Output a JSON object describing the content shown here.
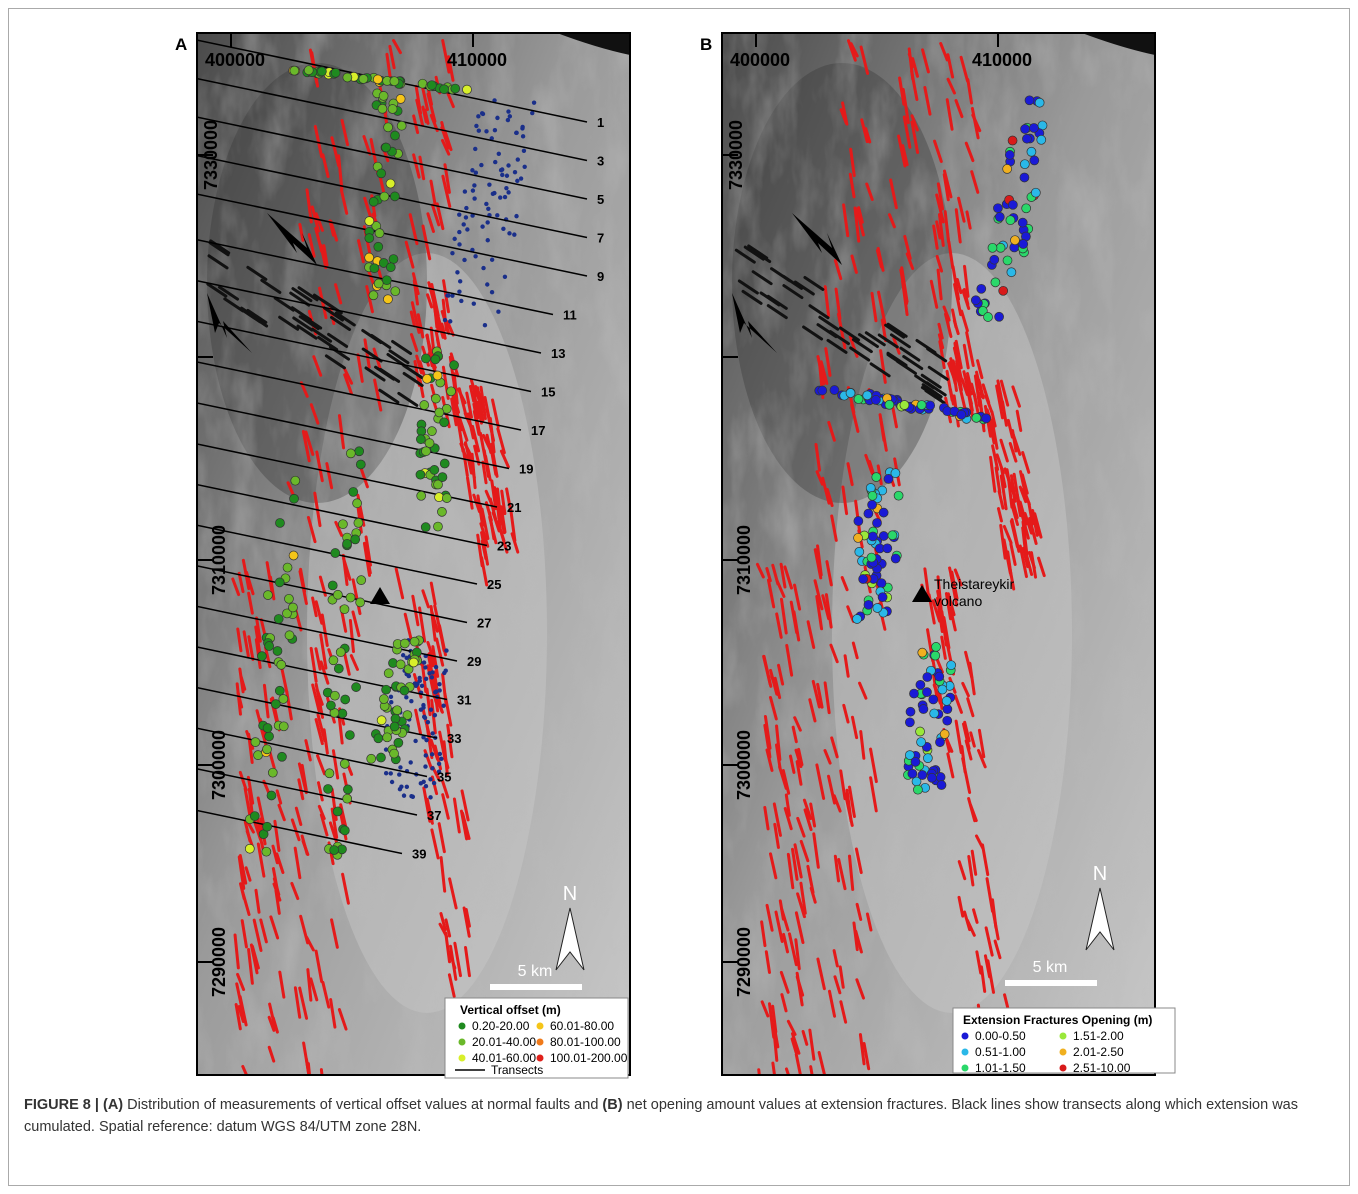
{
  "figure": {
    "panels": [
      {
        "label": "A",
        "x_labels": [
          "400000",
          "410000"
        ],
        "y_labels": [
          "7330000",
          "7310000",
          "7300000",
          "7290000"
        ],
        "transects": [
          "1",
          "3",
          "5",
          "7",
          "9",
          "11",
          "13",
          "15",
          "17",
          "19",
          "21",
          "23",
          "25",
          "27",
          "29",
          "31",
          "33",
          "35",
          "37",
          "39"
        ],
        "scale_bar": "5 km",
        "north": "N",
        "legend": {
          "title": "Vertical offset (m)",
          "items": [
            {
              "label": "0.20-20.00",
              "color": "#1f8a1f"
            },
            {
              "label": "20.01-40.00",
              "color": "#6ab82a"
            },
            {
              "label": "40.01-60.00",
              "color": "#d8ef2a"
            },
            {
              "label": "60.01-80.00",
              "color": "#f5c518"
            },
            {
              "label": "80.01-100.00",
              "color": "#f07a1a"
            },
            {
              "label": "100.01-200.00",
              "color": "#e0201a"
            }
          ],
          "line_item": "Transects"
        }
      },
      {
        "label": "B",
        "x_labels": [
          "400000",
          "410000"
        ],
        "y_labels": [
          "7330000",
          "7310000",
          "7300000",
          "7290000"
        ],
        "annotation": [
          "Theistareykir",
          "volcano"
        ],
        "scale_bar": "5 km",
        "north": "N",
        "legend": {
          "title": "Extension Fractures Opening (m)",
          "items": [
            {
              "label": "0.00-0.50",
              "color": "#1a1ad6"
            },
            {
              "label": "0.51-1.00",
              "color": "#2ab8e8"
            },
            {
              "label": "1.01-1.50",
              "color": "#2ad86a"
            },
            {
              "label": "1.51-2.00",
              "color": "#9ae83a"
            },
            {
              "label": "2.01-2.50",
              "color": "#f0b020"
            },
            {
              "label": "2.51-10.00",
              "color": "#d81a1a"
            }
          ]
        }
      }
    ],
    "caption": {
      "label": "FIGURE 8 |",
      "part_a": "(A)",
      "text_a": "Distribution of measurements of vertical offset values at normal faults and",
      "part_b": "(B)",
      "text_b": "net opening amount values at extension fractures. Black lines show transects along which extension was cumulated. Spatial reference: datum WGS 84/UTM zone 28N."
    }
  }
}
